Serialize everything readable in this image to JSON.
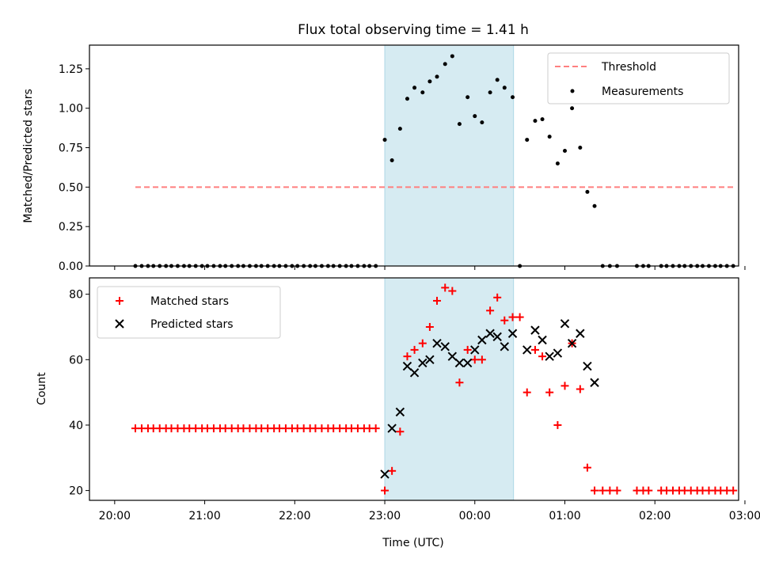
{
  "chart_data": [
    {
      "type": "scatter",
      "title": "Flux total observing time = 1.41 h",
      "xlabel": "",
      "ylabel": "Matched/Predicted stars",
      "xlim": [
        -0.28,
        6.93
      ],
      "ylim": [
        0,
        1.4
      ],
      "x_tick_labels": [
        "20:00",
        "21:00",
        "22:00",
        "23:00",
        "00:00",
        "01:00",
        "02:00",
        "03:00"
      ],
      "y_ticks": [
        0,
        0.25,
        0.5,
        0.75,
        1.0,
        1.25
      ],
      "y_tick_labels": [
        "0.00",
        "0.25",
        "0.50",
        "0.75",
        "1.00",
        "1.25"
      ],
      "shaded_span": [
        3.0,
        4.43
      ],
      "threshold": {
        "name": "Threshold",
        "value": 0.5,
        "x_range": [
          0.23,
          6.87
        ],
        "color": "#ff7f7f"
      },
      "legend": {
        "position": "top-right",
        "entries": [
          "Threshold",
          "Measurements"
        ]
      },
      "series": [
        {
          "name": "Measurements",
          "color": "#000000",
          "x": [
            0.23,
            0.3,
            0.37,
            0.43,
            0.5,
            0.57,
            0.63,
            0.7,
            0.77,
            0.83,
            0.9,
            0.97,
            1.03,
            1.1,
            1.17,
            1.23,
            1.3,
            1.37,
            1.43,
            1.5,
            1.57,
            1.63,
            1.7,
            1.77,
            1.83,
            1.9,
            1.97,
            2.03,
            2.1,
            2.17,
            2.23,
            2.3,
            2.37,
            2.43,
            2.5,
            2.57,
            2.63,
            2.7,
            2.77,
            2.83,
            2.9,
            3.0,
            3.08,
            3.17,
            3.25,
            3.33,
            3.42,
            3.5,
            3.58,
            3.67,
            3.75,
            3.83,
            3.92,
            4.0,
            4.08,
            4.17,
            4.25,
            4.33,
            4.42,
            4.5,
            4.58,
            4.67,
            4.75,
            4.83,
            4.92,
            5.0,
            5.08,
            5.17,
            5.25,
            5.33,
            5.42,
            5.5,
            5.58,
            5.8,
            5.87,
            5.93,
            6.07,
            6.13,
            6.2,
            6.27,
            6.33,
            6.4,
            6.47,
            6.53,
            6.6,
            6.67,
            6.73,
            6.8,
            6.87
          ],
          "y": [
            0,
            0,
            0,
            0,
            0,
            0,
            0,
            0,
            0,
            0,
            0,
            0,
            0,
            0,
            0,
            0,
            0,
            0,
            0,
            0,
            0,
            0,
            0,
            0,
            0,
            0,
            0,
            0,
            0,
            0,
            0,
            0,
            0,
            0,
            0,
            0,
            0,
            0,
            0,
            0,
            0,
            0.8,
            0.67,
            0.87,
            1.06,
            1.13,
            1.1,
            1.17,
            1.2,
            1.28,
            1.33,
            0.9,
            1.07,
            0.95,
            0.91,
            1.1,
            1.18,
            1.13,
            1.07,
            0,
            0.8,
            0.92,
            0.93,
            0.82,
            0.65,
            0.73,
            1.0,
            0.75,
            0.47,
            0.38,
            0,
            0,
            0,
            0,
            0,
            0,
            0,
            0,
            0,
            0,
            0,
            0,
            0,
            0,
            0,
            0,
            0,
            0,
            0
          ]
        }
      ]
    },
    {
      "type": "scatter",
      "title": "",
      "xlabel": "Time (UTC)",
      "ylabel": "Count",
      "xlim": [
        -0.28,
        6.93
      ],
      "ylim": [
        17,
        85
      ],
      "x_tick_labels": [
        "20:00",
        "21:00",
        "22:00",
        "23:00",
        "00:00",
        "01:00",
        "02:00",
        "03:00"
      ],
      "y_ticks": [
        20,
        40,
        60,
        80
      ],
      "y_tick_labels": [
        "20",
        "40",
        "60",
        "80"
      ],
      "shaded_span": [
        3.0,
        4.43
      ],
      "legend": {
        "position": "top-left",
        "entries": [
          "Matched stars",
          "Predicted stars"
        ]
      },
      "series": [
        {
          "name": "Matched stars",
          "marker": "+",
          "color": "#ff0000",
          "x": [
            0.23,
            0.3,
            0.37,
            0.43,
            0.5,
            0.57,
            0.63,
            0.7,
            0.77,
            0.83,
            0.9,
            0.97,
            1.03,
            1.1,
            1.17,
            1.23,
            1.3,
            1.37,
            1.43,
            1.5,
            1.57,
            1.63,
            1.7,
            1.77,
            1.83,
            1.9,
            1.97,
            2.03,
            2.1,
            2.17,
            2.23,
            2.3,
            2.37,
            2.43,
            2.5,
            2.57,
            2.63,
            2.7,
            2.77,
            2.83,
            2.9,
            3.0,
            3.08,
            3.17,
            3.25,
            3.33,
            3.42,
            3.5,
            3.58,
            3.67,
            3.75,
            3.83,
            3.92,
            4.0,
            4.08,
            4.17,
            4.25,
            4.33,
            4.42,
            4.5,
            4.58,
            4.67,
            4.75,
            4.83,
            4.92,
            5.0,
            5.08,
            5.17,
            5.25,
            5.33,
            5.42,
            5.5,
            5.58,
            5.8,
            5.87,
            5.93,
            6.07,
            6.13,
            6.2,
            6.27,
            6.33,
            6.4,
            6.47,
            6.53,
            6.6,
            6.67,
            6.73,
            6.8,
            6.87
          ],
          "y": [
            39,
            39,
            39,
            39,
            39,
            39,
            39,
            39,
            39,
            39,
            39,
            39,
            39,
            39,
            39,
            39,
            39,
            39,
            39,
            39,
            39,
            39,
            39,
            39,
            39,
            39,
            39,
            39,
            39,
            39,
            39,
            39,
            39,
            39,
            39,
            39,
            39,
            39,
            39,
            39,
            39,
            20,
            26,
            38,
            61,
            63,
            65,
            70,
            78,
            82,
            81,
            53,
            63,
            60,
            60,
            75,
            79,
            72,
            73,
            73,
            50,
            63,
            61,
            50,
            40,
            52,
            65,
            51,
            27,
            20,
            20,
            20,
            20,
            20,
            20,
            20,
            20,
            20,
            20,
            20,
            20,
            20,
            20,
            20,
            20,
            20,
            20,
            20,
            20
          ]
        },
        {
          "name": "Predicted stars",
          "marker": "x",
          "color": "#000000",
          "x": [
            3.0,
            3.08,
            3.17,
            3.25,
            3.33,
            3.42,
            3.5,
            3.58,
            3.67,
            3.75,
            3.83,
            3.92,
            4.0,
            4.08,
            4.17,
            4.25,
            4.33,
            4.42,
            4.58,
            4.67,
            4.75,
            4.83,
            4.92,
            5.0,
            5.08,
            5.17,
            5.25,
            5.33
          ],
          "y": [
            25,
            39,
            44,
            58,
            56,
            59,
            60,
            65,
            64,
            61,
            59,
            59,
            63,
            66,
            68,
            67,
            64,
            68,
            63,
            69,
            66,
            61,
            62,
            71,
            65,
            68,
            58,
            53
          ]
        }
      ]
    }
  ]
}
